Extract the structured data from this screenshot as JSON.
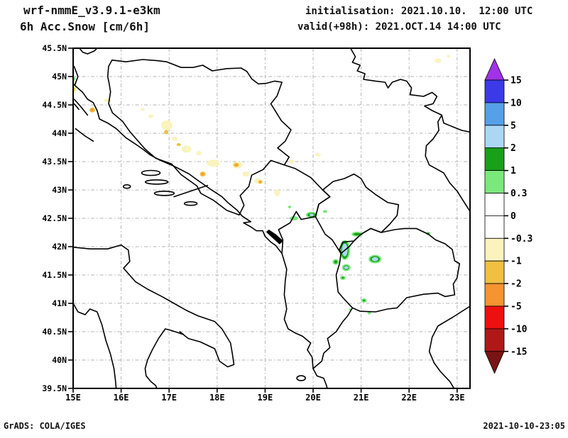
{
  "header": {
    "model": "wrf-nmmE_v3.9.1-e3km",
    "product": "6h Acc.Snow [cm/6h]",
    "initialisation": "initialisation: 2021.10.10.  12:00 UTC",
    "valid": "valid(+98h): 2021.OCT.14 14:00 UTC"
  },
  "footer": {
    "left": "GrADS: COLA/IGES",
    "right": "2021-10-10-23:05"
  },
  "chart_data": {
    "type": "heatmap",
    "subtype": "GrADS filled-contour weather map over the Balkans / Adriatic",
    "title": "6h Acc.Snow [cm/6h]",
    "units": "cm/6h",
    "x_axis": {
      "range": [
        15,
        23.27
      ],
      "gridline_every_deg": 1,
      "ticks": [
        {
          "label": "15E",
          "value": 15
        },
        {
          "label": "16E",
          "value": 16
        },
        {
          "label": "17E",
          "value": 17
        },
        {
          "label": "18E",
          "value": 18
        },
        {
          "label": "19E",
          "value": 19
        },
        {
          "label": "20E",
          "value": 20
        },
        {
          "label": "21E",
          "value": 21
        },
        {
          "label": "22E",
          "value": 22
        },
        {
          "label": "23E",
          "value": 23
        }
      ]
    },
    "y_axis": {
      "range": [
        39.5,
        45.5
      ],
      "gridline_every_deg": 0.5,
      "ticks": [
        {
          "label": "45.5N",
          "value": 45.5
        },
        {
          "label": "45N",
          "value": 45
        },
        {
          "label": "44.5N",
          "value": 44.5
        },
        {
          "label": "44N",
          "value": 44
        },
        {
          "label": "43.5N",
          "value": 43.5
        },
        {
          "label": "43N",
          "value": 43
        },
        {
          "label": "42.5N",
          "value": 42.5
        },
        {
          "label": "42N",
          "value": 42
        },
        {
          "label": "41.5N",
          "value": 41.5
        },
        {
          "label": "41N",
          "value": 41
        },
        {
          "label": "40.5N",
          "value": 40.5
        },
        {
          "label": "40N",
          "value": 40
        },
        {
          "label": "39.5N",
          "value": 39.5
        }
      ]
    },
    "grid": {
      "style": "dash-dot",
      "color": "#b3b3b3"
    },
    "colorbar": {
      "unit": "cm/6h",
      "labels": [
        "15",
        "10",
        "5",
        "2",
        "1",
        "0.3",
        "0",
        "-0.3",
        "-1",
        "-2",
        "-5",
        "-10",
        "-15"
      ],
      "segment_colors_top_to_bottom": [
        "#3A3AE8",
        "#55A0E8",
        "#ABD7F5",
        "#18A018",
        "#7BE87B",
        "#FFFFFF",
        "#FFFFFF",
        "#FAF3BD",
        "#EFC041",
        "#F59430",
        "#EE0F0F",
        "#B01818"
      ],
      "above_max_color": "#A032E8",
      "below_min_color": "#7A1414"
    },
    "value_color_key": {
      "0.3 to 1": "#7BE87B",
      "1 to 2": "#18A018",
      "2 to 5": "#ABD7F5",
      "-1 to -0.3": "#FAF3BD",
      "-2 to -1": "#EFC041",
      "-5 to -2": "#F59430"
    },
    "snow_negative_cm": [
      {
        "lon": 15.02,
        "lat": 44.82,
        "rx": 3,
        "ry": 10,
        "color": "#FAF3BD",
        "value": "-1 to -0.3"
      },
      {
        "lon": 15.02,
        "lat": 44.78,
        "rx": 1.5,
        "ry": 3,
        "color": "#EFC041",
        "value": "-2 to -1"
      },
      {
        "lon": 15.4,
        "lat": 44.41,
        "rx": 4,
        "ry": 3.5,
        "color": "#EFC041",
        "core": "#F59430",
        "value": "-5 to -2"
      },
      {
        "lon": 15.72,
        "lat": 44.58,
        "rx": 5,
        "ry": 2.5,
        "color": "#FAF3BD",
        "value": "-1 to -0.3"
      },
      {
        "lon": 16.45,
        "lat": 44.42,
        "rx": 3,
        "ry": 2,
        "color": "#FAF3BD",
        "value": "-1 to -0.3"
      },
      {
        "lon": 16.62,
        "lat": 44.3,
        "rx": 3.5,
        "ry": 2.5,
        "color": "#FAF3BD",
        "value": "-1 to -0.3"
      },
      {
        "lon": 16.95,
        "lat": 44.14,
        "rx": 8,
        "ry": 7,
        "color": "#FAF3BD",
        "value": "-1 to -0.3"
      },
      {
        "lon": 16.94,
        "lat": 44.02,
        "rx": 3,
        "ry": 3,
        "color": "#EFC041",
        "value": "-2 to -1"
      },
      {
        "lon": 17.12,
        "lat": 43.9,
        "rx": 4,
        "ry": 3,
        "color": "#FAF3BD",
        "value": "-1 to -0.3"
      },
      {
        "lon": 17.2,
        "lat": 43.8,
        "rx": 3,
        "ry": 2,
        "color": "#EFC041",
        "value": "-2 to -1"
      },
      {
        "lon": 17.36,
        "lat": 43.72,
        "rx": 7,
        "ry": 5,
        "color": "#FAF3BD",
        "value": "-1 to -0.3"
      },
      {
        "lon": 17.62,
        "lat": 43.65,
        "rx": 4,
        "ry": 3,
        "color": "#FAF3BD",
        "value": "-1 to -0.3"
      },
      {
        "lon": 17.92,
        "lat": 43.47,
        "rx": 9,
        "ry": 5,
        "color": "#FAF3BD",
        "value": "-1 to -0.3"
      },
      {
        "lon": 17.7,
        "lat": 43.28,
        "rx": 4,
        "ry": 3.5,
        "color": "#EFC041",
        "core": "#F59430",
        "value": "-5 to -2"
      },
      {
        "lon": 18.42,
        "lat": 43.44,
        "rx": 7,
        "ry": 5,
        "color": "#FAF3BD",
        "value": "-1 to -0.3"
      },
      {
        "lon": 18.4,
        "lat": 43.44,
        "rx": 4,
        "ry": 3,
        "color": "#EFC041",
        "core": "#F59430",
        "value": "-5 to -2"
      },
      {
        "lon": 18.6,
        "lat": 43.28,
        "rx": 5,
        "ry": 3.5,
        "color": "#FAF3BD",
        "value": "-1 to -0.3"
      },
      {
        "lon": 18.85,
        "lat": 43.16,
        "rx": 5,
        "ry": 4,
        "color": "#FAF3BD",
        "value": "-1 to -0.3"
      },
      {
        "lon": 18.9,
        "lat": 43.14,
        "rx": 3,
        "ry": 2.5,
        "color": "#EFC041",
        "core": "#F59430",
        "value": "-5 to -2"
      },
      {
        "lon": 19.25,
        "lat": 42.95,
        "rx": 4,
        "ry": 5,
        "color": "#FAF3BD",
        "value": "-1 to -0.3"
      },
      {
        "lon": 19.55,
        "lat": 43.5,
        "rx": 4,
        "ry": 3,
        "color": "#FAF3BD",
        "value": "-1 to -0.3"
      },
      {
        "lon": 20.1,
        "lat": 43.62,
        "rx": 4,
        "ry": 2.5,
        "color": "#FAF3BD",
        "value": "-1 to -0.3"
      },
      {
        "lon": 22.6,
        "lat": 45.28,
        "rx": 5,
        "ry": 3,
        "color": "#FAF3BD",
        "value": "-1 to -0.3"
      },
      {
        "lon": 22.82,
        "lat": 45.36,
        "rx": 2.5,
        "ry": 2,
        "color": "#FAF3BD",
        "value": "-1 to -0.3"
      }
    ],
    "snow_positive_cm": [
      {
        "lon": 15.02,
        "lat": 44.96,
        "rx": 2,
        "ry": 2.5,
        "outer": "#7BE87B",
        "value": "0.3 to 1"
      },
      {
        "lon": 19.51,
        "lat": 42.7,
        "rx": 2,
        "ry": 2,
        "outer": "#7BE87B",
        "value": "0.3 to 1"
      },
      {
        "lon": 19.6,
        "lat": 42.5,
        "rx": 6,
        "ry": 3,
        "outer": "#7BE87B",
        "value": "0.3 to 1"
      },
      {
        "lon": 19.97,
        "lat": 42.56,
        "rx": 8,
        "ry": 4.5,
        "outer": "#7BE87B",
        "mid": "#18A018",
        "core": "#ABD7F5",
        "crx": 3,
        "cry": 1.8,
        "value": "2 to 5"
      },
      {
        "lon": 20.25,
        "lat": 42.62,
        "rx": 3,
        "ry": 2,
        "outer": "#7BE87B",
        "value": "0.3 to 1"
      },
      {
        "lon": 20.92,
        "lat": 42.22,
        "rx": 8,
        "ry": 3.5,
        "outer": "#7BE87B",
        "mid": "#18A018",
        "value": "1 to 2"
      },
      {
        "lon": 20.66,
        "lat": 41.94,
        "rx": 7.5,
        "ry": 14,
        "outer": "#7BE87B",
        "mid": "#18A018",
        "core": "#ABD7F5",
        "crx": 4,
        "cry": 9,
        "value": "2 to 5"
      },
      {
        "lon": 20.47,
        "lat": 41.73,
        "rx": 4.5,
        "ry": 4,
        "outer": "#7BE87B",
        "mid": "#18A018",
        "value": "1 to 2"
      },
      {
        "lon": 20.69,
        "lat": 41.63,
        "rx": 6,
        "ry": 5,
        "outer": "#7BE87B",
        "mid": "#18A018",
        "core": "#ABD7F5",
        "crx": 3,
        "cry": 2.2,
        "value": "2 to 5"
      },
      {
        "lon": 20.62,
        "lat": 41.45,
        "rx": 4,
        "ry": 3,
        "outer": "#7BE87B",
        "mid": "#18A018",
        "value": "1 to 2"
      },
      {
        "lon": 21.29,
        "lat": 41.78,
        "rx": 9,
        "ry": 6,
        "outer": "#7BE87B",
        "mid": "#18A018",
        "core": "#ABD7F5",
        "crx": 4.5,
        "cry": 3,
        "value": "2 to 5"
      },
      {
        "lon": 22.4,
        "lat": 42.23,
        "rx": 3,
        "ry": 2.5,
        "outer": "#7BE87B",
        "mid": "#18A018",
        "value": "1 to 2"
      },
      {
        "lon": 21.06,
        "lat": 41.05,
        "rx": 4,
        "ry": 3,
        "outer": "#7BE87B",
        "mid": "#18A018",
        "value": "1 to 2"
      },
      {
        "lon": 20.77,
        "lat": 40.89,
        "rx": 2,
        "ry": 1.5,
        "outer": "#7BE87B",
        "value": "0.3 to 1"
      },
      {
        "lon": 21.17,
        "lat": 40.83,
        "rx": 2.5,
        "ry": 2,
        "outer": "#7BE87B",
        "value": "0.3 to 1"
      }
    ]
  }
}
